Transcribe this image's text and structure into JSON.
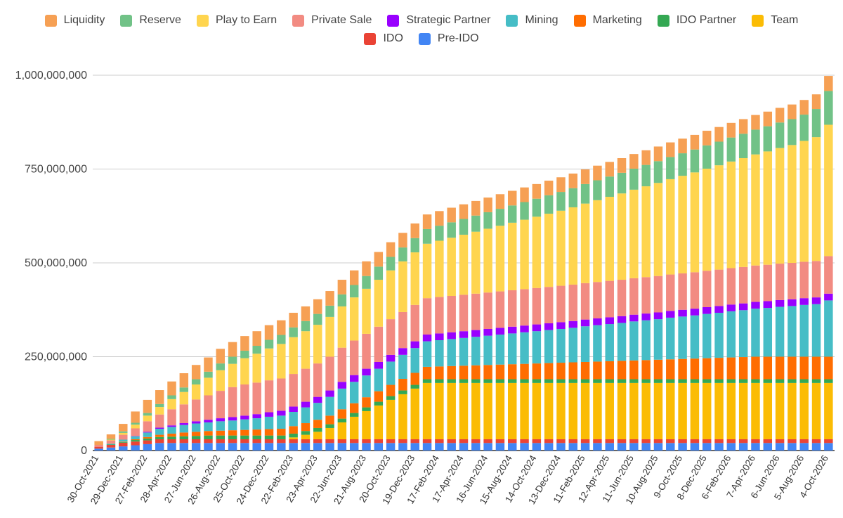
{
  "chart_data": {
    "type": "bar",
    "stacked": true,
    "title": "",
    "xlabel": "",
    "ylabel": "",
    "ylim": [
      0,
      1000000000
    ],
    "yticks": [
      0,
      250000000,
      500000000,
      750000000,
      1000000000
    ],
    "ytick_labels": [
      "0",
      "250,000,000",
      "500,000,000",
      "750,000,000",
      "1,000,000,000"
    ],
    "grid": true,
    "legend_position": "top",
    "num_bars": 61,
    "xtick_labels": [
      "30-Oct-2021",
      "29-Dec-2021",
      "27-Feb-2022",
      "28-Apr-2022",
      "27-Jun-2022",
      "26-Aug-2022",
      "25-Oct-2022",
      "24-Dec-2022",
      "22-Feb-2023",
      "23-Apr-2023",
      "22-Jun-2023",
      "21-Aug-2023",
      "20-Oct-2023",
      "19-Dec-2023",
      "17-Feb-2024",
      "17-Apr-2024",
      "16-Jun-2024",
      "15-Aug-2024",
      "14-Oct-2024",
      "13-Dec-2024",
      "11-Feb-2025",
      "12-Apr-2025",
      "11-Jun-2025",
      "10-Aug-2025",
      "9-Oct-2025",
      "8-Dec-2025",
      "6-Feb-2026",
      "7-Apr-2026",
      "6-Jun-2026",
      "5-Aug-2026",
      "4-Oct-2026"
    ],
    "series": [
      {
        "name": "Pre-IDO",
        "color": "#4285F4",
        "values": [
          5000000,
          8000000,
          11000000,
          14000000,
          17000000,
          20000000,
          20000000,
          20000000,
          20000000,
          20000000,
          20000000,
          20000000,
          20000000,
          20000000,
          20000000,
          20000000,
          20000000,
          20000000,
          20000000,
          20000000,
          20000000,
          20000000,
          20000000,
          20000000,
          20000000,
          20000000,
          20000000,
          20000000,
          20000000,
          20000000,
          20000000,
          20000000,
          20000000,
          20000000,
          20000000,
          20000000,
          20000000,
          20000000,
          20000000,
          20000000,
          20000000,
          20000000,
          20000000,
          20000000,
          20000000,
          20000000,
          20000000,
          20000000,
          20000000,
          20000000,
          20000000,
          20000000,
          20000000,
          20000000,
          20000000,
          20000000,
          20000000,
          20000000,
          20000000,
          20000000,
          20000000
        ]
      },
      {
        "name": "IDO",
        "color": "#EA4335",
        "values": [
          5000000,
          7000000,
          10000000,
          10000000,
          10000000,
          10000000,
          10000000,
          10000000,
          10000000,
          10000000,
          10000000,
          10000000,
          10000000,
          10000000,
          10000000,
          10000000,
          10000000,
          10000000,
          10000000,
          10000000,
          10000000,
          10000000,
          10000000,
          10000000,
          10000000,
          10000000,
          10000000,
          10000000,
          10000000,
          10000000,
          10000000,
          10000000,
          10000000,
          10000000,
          10000000,
          10000000,
          10000000,
          10000000,
          10000000,
          10000000,
          10000000,
          10000000,
          10000000,
          10000000,
          10000000,
          10000000,
          10000000,
          10000000,
          10000000,
          10000000,
          10000000,
          10000000,
          10000000,
          10000000,
          10000000,
          10000000,
          10000000,
          10000000,
          10000000,
          10000000,
          10000000
        ]
      },
      {
        "name": "Team",
        "color": "#FBBC04",
        "values": [
          0,
          0,
          0,
          0,
          0,
          0,
          0,
          0,
          0,
          0,
          0,
          0,
          0,
          0,
          0,
          0,
          5000000,
          12000000,
          20000000,
          30000000,
          45000000,
          60000000,
          75000000,
          90000000,
          105000000,
          120000000,
          135000000,
          150000000,
          150000000,
          150000000,
          150000000,
          150000000,
          150000000,
          150000000,
          150000000,
          150000000,
          150000000,
          150000000,
          150000000,
          150000000,
          150000000,
          150000000,
          150000000,
          150000000,
          150000000,
          150000000,
          150000000,
          150000000,
          150000000,
          150000000,
          150000000,
          150000000,
          150000000,
          150000000,
          150000000,
          150000000,
          150000000,
          150000000,
          150000000,
          150000000,
          150000000
        ]
      },
      {
        "name": "IDO Partner",
        "color": "#34A853",
        "values": [
          0,
          1000000,
          2000000,
          4000000,
          5000000,
          6000000,
          7000000,
          8000000,
          9000000,
          10000000,
          10000000,
          10000000,
          10000000,
          10000000,
          10000000,
          10000000,
          10000000,
          10000000,
          10000000,
          10000000,
          10000000,
          10000000,
          10000000,
          10000000,
          10000000,
          10000000,
          10000000,
          10000000,
          10000000,
          10000000,
          10000000,
          10000000,
          10000000,
          10000000,
          10000000,
          10000000,
          10000000,
          10000000,
          10000000,
          10000000,
          10000000,
          10000000,
          10000000,
          10000000,
          10000000,
          10000000,
          10000000,
          10000000,
          10000000,
          10000000,
          10000000,
          10000000,
          10000000,
          10000000,
          10000000,
          10000000,
          10000000,
          10000000,
          10000000,
          10000000,
          10000000
        ]
      },
      {
        "name": "Marketing",
        "color": "#FF6D01",
        "values": [
          0,
          0,
          1000000,
          2000000,
          4000000,
          6000000,
          8000000,
          10000000,
          11000000,
          12000000,
          13000000,
          14000000,
          15000000,
          16000000,
          17000000,
          18000000,
          20000000,
          21000000,
          22000000,
          23000000,
          25000000,
          26000000,
          27000000,
          28000000,
          30000000,
          31000000,
          32000000,
          33000000,
          34000000,
          35000000,
          36000000,
          37000000,
          38000000,
          39000000,
          40000000,
          41000000,
          42000000,
          43000000,
          44000000,
          45000000,
          46000000,
          47000000,
          48000000,
          49000000,
          50000000,
          51000000,
          52000000,
          53000000,
          54000000,
          55000000,
          56000000,
          57000000,
          58000000,
          59000000,
          60000000,
          60000000,
          60000000,
          60000000,
          60000000,
          60000000,
          60000000
        ]
      },
      {
        "name": "Mining",
        "color": "#46BDC6",
        "values": [
          0,
          2000000,
          5000000,
          8000000,
          12000000,
          16000000,
          18000000,
          20000000,
          22000000,
          23000000,
          25000000,
          26000000,
          28000000,
          30000000,
          33000000,
          35000000,
          38000000,
          42000000,
          45000000,
          50000000,
          55000000,
          57000000,
          58000000,
          60000000,
          62000000,
          64000000,
          66000000,
          68000000,
          70000000,
          72000000,
          74000000,
          76000000,
          78000000,
          80000000,
          82000000,
          84000000,
          86000000,
          88000000,
          90000000,
          92000000,
          95000000,
          97000000,
          99000000,
          101000000,
          104000000,
          106000000,
          108000000,
          111000000,
          113000000,
          115000000,
          118000000,
          120000000,
          123000000,
          125000000,
          128000000,
          130000000,
          133000000,
          135000000,
          138000000,
          140000000,
          150000000
        ]
      },
      {
        "name": "Strategic Partner",
        "color": "#9900FF",
        "values": [
          0,
          0,
          0,
          1000000,
          2000000,
          3000000,
          4000000,
          5000000,
          6000000,
          7000000,
          8000000,
          9000000,
          10000000,
          11000000,
          12000000,
          13000000,
          14000000,
          15000000,
          16000000,
          17000000,
          18000000,
          18000000,
          18000000,
          18000000,
          18000000,
          18000000,
          18000000,
          18000000,
          18000000,
          18000000,
          18000000,
          18000000,
          18000000,
          18000000,
          18000000,
          18000000,
          18000000,
          18000000,
          18000000,
          18000000,
          18000000,
          18000000,
          18000000,
          18000000,
          18000000,
          18000000,
          18000000,
          18000000,
          18000000,
          18000000,
          18000000,
          18000000,
          18000000,
          18000000,
          18000000,
          18000000,
          18000000,
          18000000,
          18000000,
          18000000,
          18000000
        ]
      },
      {
        "name": "Private Sale",
        "color": "#F28B82",
        "values": [
          5000000,
          9000000,
          13000000,
          20000000,
          28000000,
          35000000,
          43000000,
          50000000,
          58000000,
          65000000,
          73000000,
          80000000,
          83000000,
          84000000,
          85000000,
          86000000,
          87000000,
          88000000,
          89000000,
          90000000,
          91000000,
          92000000,
          93000000,
          94000000,
          95000000,
          96000000,
          97000000,
          97000000,
          97000000,
          97000000,
          97000000,
          97000000,
          97000000,
          97000000,
          97000000,
          97000000,
          97000000,
          97000000,
          97000000,
          97000000,
          97000000,
          97000000,
          97000000,
          97000000,
          97000000,
          97000000,
          97000000,
          97000000,
          97000000,
          97000000,
          97000000,
          97000000,
          97000000,
          97000000,
          97000000,
          97000000,
          97000000,
          97000000,
          97000000,
          97000000,
          100000000
        ]
      },
      {
        "name": "Play to Earn",
        "color": "#FFD54F",
        "values": [
          0,
          2000000,
          5000000,
          10000000,
          15000000,
          20000000,
          27000000,
          33000000,
          40000000,
          47000000,
          55000000,
          62000000,
          70000000,
          77000000,
          85000000,
          92000000,
          98000000,
          100000000,
          103000000,
          106000000,
          110000000,
          115000000,
          120000000,
          125000000,
          130000000,
          135000000,
          140000000,
          145000000,
          150000000,
          155000000,
          160000000,
          165000000,
          170000000,
          175000000,
          180000000,
          185000000,
          190000000,
          195000000,
          200000000,
          206000000,
          212000000,
          218000000,
          224000000,
          230000000,
          236000000,
          242000000,
          248000000,
          254000000,
          260000000,
          266000000,
          272000000,
          278000000,
          284000000,
          290000000,
          296000000,
          302000000,
          308000000,
          314000000,
          322000000,
          330000000,
          350000000
        ]
      },
      {
        "name": "Reserve",
        "color": "#71C287",
        "values": [
          0,
          2000000,
          4000000,
          5000000,
          7000000,
          8000000,
          10000000,
          12000000,
          14000000,
          16000000,
          18000000,
          19000000,
          20000000,
          21000000,
          23000000,
          24000000,
          26000000,
          27000000,
          29000000,
          30000000,
          32000000,
          33000000,
          34000000,
          35000000,
          36000000,
          37000000,
          38000000,
          39000000,
          40000000,
          41000000,
          42000000,
          43000000,
          44000000,
          45000000,
          46000000,
          47000000,
          48000000,
          49000000,
          50000000,
          51000000,
          52000000,
          53000000,
          54000000,
          55000000,
          56000000,
          57000000,
          58000000,
          59000000,
          60000000,
          61000000,
          62000000,
          63000000,
          64000000,
          65000000,
          66000000,
          67000000,
          68000000,
          69000000,
          70000000,
          75000000,
          90000000
        ]
      },
      {
        "name": "Liquidity",
        "color": "#F6A054",
        "values": [
          10000000,
          12000000,
          20000000,
          30000000,
          35000000,
          37000000,
          37000000,
          38000000,
          38000000,
          38000000,
          39000000,
          39000000,
          39000000,
          39000000,
          39000000,
          39000000,
          39000000,
          39000000,
          39000000,
          39000000,
          39000000,
          39000000,
          39000000,
          39000000,
          39000000,
          39000000,
          39000000,
          39000000,
          39000000,
          39000000,
          39000000,
          39000000,
          39000000,
          39000000,
          39000000,
          39000000,
          39000000,
          39000000,
          39000000,
          39000000,
          39000000,
          39000000,
          39000000,
          39000000,
          39000000,
          39000000,
          39000000,
          39000000,
          39000000,
          39000000,
          39000000,
          39000000,
          39000000,
          39000000,
          39000000,
          39000000,
          39000000,
          39000000,
          39000000,
          39000000,
          40000000
        ]
      }
    ],
    "legend_order": [
      "Liquidity",
      "Reserve",
      "Play to Earn",
      "Private Sale",
      "Strategic Partner",
      "Mining",
      "Marketing",
      "IDO Partner",
      "Team",
      "IDO",
      "Pre-IDO"
    ]
  }
}
